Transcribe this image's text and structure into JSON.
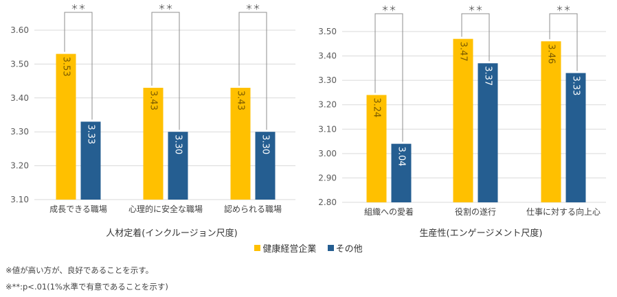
{
  "chart_data": [
    {
      "type": "bar",
      "title": "人材定着(インクルージョン尺度)",
      "categories": [
        "成長できる職場",
        "心理的に安全な職場",
        "認められる職場"
      ],
      "series": [
        {
          "name": "健康経営企業",
          "values": [
            3.53,
            3.43,
            3.43
          ],
          "color": "#FFC000"
        },
        {
          "name": "その他",
          "values": [
            3.33,
            3.3,
            3.3
          ],
          "color": "#255E91"
        }
      ],
      "value_labels": [
        [
          "3.53",
          "3.43",
          "3.43"
        ],
        [
          "3.33",
          "3.30",
          "3.30"
        ]
      ],
      "ylim": [
        3.1,
        3.6
      ],
      "yticks": [
        "3.10",
        "3.20",
        "3.30",
        "3.40",
        "3.50",
        "3.60"
      ],
      "significance": [
        "＊＊",
        "＊＊",
        "＊＊"
      ],
      "grid": true
    },
    {
      "type": "bar",
      "title": "生産性(エンゲージメント尺度)",
      "categories": [
        "組織への愛着",
        "役割の遂行",
        "仕事に対する向上心"
      ],
      "series": [
        {
          "name": "健康経営企業",
          "values": [
            3.24,
            3.47,
            3.46
          ],
          "color": "#FFC000"
        },
        {
          "name": "その他",
          "values": [
            3.04,
            3.37,
            3.33
          ],
          "color": "#255E91"
        }
      ],
      "value_labels": [
        [
          "3.24",
          "3.47",
          "3.46"
        ],
        [
          "3.04",
          "3.37",
          "3.33"
        ]
      ],
      "ylim": [
        2.8,
        3.5
      ],
      "yticks": [
        "2.80",
        "2.90",
        "3.00",
        "3.10",
        "3.20",
        "3.30",
        "3.40",
        "3.50"
      ],
      "significance": [
        "＊＊",
        "＊＊",
        "＊＊"
      ],
      "grid": true
    }
  ],
  "legend": {
    "items": [
      {
        "label": "健康経営企業",
        "color": "#FFC000"
      },
      {
        "label": "その他",
        "color": "#255E91"
      }
    ]
  },
  "notes": {
    "line1": "※値が高い方が、良好であることを示す。",
    "line2": "※**:p<.01(1%水準で有意であることを示す)"
  }
}
